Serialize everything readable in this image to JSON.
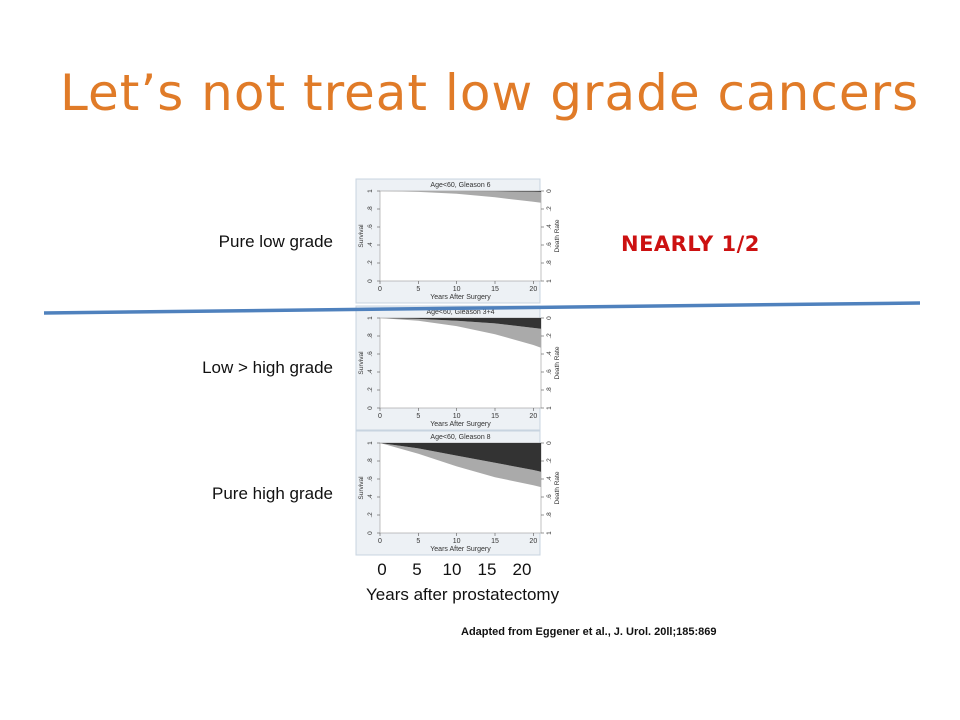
{
  "slide": {
    "title": "Let’s not treat low grade cancers",
    "callout": "NEARLY 1/2",
    "citation": "Adapted from Eggener et al., J. Urol. 20ll;185:869"
  },
  "colors": {
    "title": "#e07b28",
    "callout": "#cc1111",
    "divider_line": "#4f81bd",
    "panel_border": "#c8d4e0",
    "area_death": "#333333",
    "area_other": "#aaaaaa"
  },
  "chart_data": {
    "type": "area",
    "panel_xlabel": "Years After Surgery",
    "panel_ylabel_left": "Survival",
    "panel_ylabel_right": "Death Rate",
    "x_ticks": [
      0,
      5,
      10,
      15,
      20
    ],
    "y_ticks_left": [
      0,
      0.2,
      0.4,
      0.6,
      0.8,
      1
    ],
    "y_tick_labels_left": [
      "0",
      ".2",
      ".4",
      ".6",
      ".8",
      "1"
    ],
    "y_tick_labels_right": [
      "1",
      ".8",
      ".6",
      ".4",
      ".2",
      "0"
    ],
    "xlim": [
      0,
      21
    ],
    "ylim": [
      0,
      1
    ],
    "x": [
      0,
      5,
      10,
      15,
      20,
      21
    ],
    "outer_x_ticks": [
      "0",
      "5",
      "10",
      "15",
      "20"
    ],
    "outer_xlabel": "Years after prostatectomy",
    "panels": [
      {
        "title": "Age<60, Gleason 6",
        "row_label": "Pure low grade",
        "upper": [
          1,
          1,
          1,
          0.998,
          0.993,
          0.99
        ],
        "middle": [
          1,
          0.99,
          0.97,
          0.93,
          0.88,
          0.87
        ]
      },
      {
        "title": "Age<60, Gleason 3+4",
        "row_label": "Low > high grade",
        "upper": [
          1,
          0.99,
          0.97,
          0.94,
          0.89,
          0.88
        ],
        "middle": [
          1,
          0.97,
          0.91,
          0.82,
          0.7,
          0.67
        ]
      },
      {
        "title": "Age<60, Gleason 8",
        "row_label": "Pure high grade",
        "upper": [
          1,
          0.94,
          0.86,
          0.78,
          0.7,
          0.68
        ],
        "middle": [
          1,
          0.88,
          0.74,
          0.62,
          0.53,
          0.51
        ]
      }
    ]
  }
}
